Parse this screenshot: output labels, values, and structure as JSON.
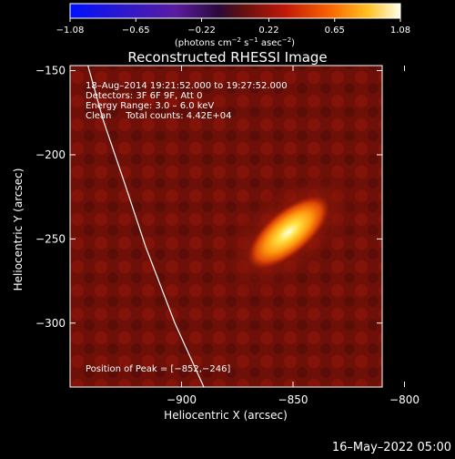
{
  "chart_data": {
    "type": "heatmap",
    "title": "Reconstructed RHESSI Image",
    "xlabel": "Heliocentric X (arcsec)",
    "ylabel": "Heliocentric Y (arcsec)",
    "xlim": [
      -950,
      -810
    ],
    "ylim": [
      -338,
      -147
    ],
    "x_ticks": [
      {
        "value": -900,
        "label": "−900"
      },
      {
        "value": -850,
        "label": "−850"
      },
      {
        "value": -800,
        "label": "−800"
      }
    ],
    "y_ticks": [
      {
        "value": -150,
        "label": "−150"
      },
      {
        "value": -200,
        "label": "−200"
      },
      {
        "value": -250,
        "label": "−250"
      },
      {
        "value": -300,
        "label": "−300"
      }
    ],
    "colorbar": {
      "min": -1.08,
      "max": 1.08,
      "ticks": [
        {
          "value": -1.08,
          "label": "−1.08"
        },
        {
          "value": -0.65,
          "label": "−0.65"
        },
        {
          "value": -0.22,
          "label": "−0.22"
        },
        {
          "value": 0.22,
          "label": "0.22"
        },
        {
          "value": 0.65,
          "label": "0.65"
        },
        {
          "value": 1.08,
          "label": "1.08"
        }
      ],
      "unit_prefix": "(photons cm",
      "unit_exp1": "−2",
      "unit_mid1": " s",
      "unit_exp2": "−1",
      "unit_mid2": " asec",
      "unit_exp3": "−2",
      "unit_suffix": ")"
    },
    "source": {
      "peak_x": -852,
      "peak_y": -246,
      "peak_value": 1.08,
      "orientation_deg": 40
    },
    "limb_curve": [
      [
        -942,
        -147
      ],
      [
        -935,
        -180
      ],
      [
        -926,
        -215
      ],
      [
        -916,
        -255
      ],
      [
        -903,
        -300
      ],
      [
        -890,
        -338
      ]
    ],
    "annotations": {
      "time": "18–Aug–2014 19:21:52.000 to 19:27:52.000",
      "detectors": "Detectors: 3F 6F 9F, Att 0",
      "energy": "Energy Range: 3.0 – 6.0 keV",
      "clean": "Clean     Total counts: 4.42E+04",
      "peak": "Position of Peak = [−852,−246]"
    }
  },
  "footer_timestamp": "16–May–2022 05:00"
}
